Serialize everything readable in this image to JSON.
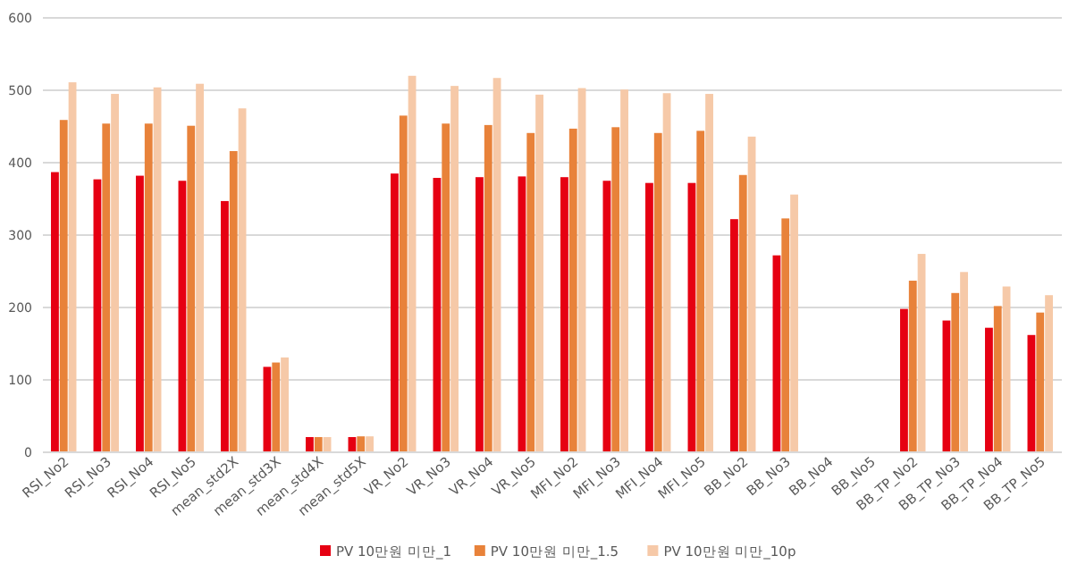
{
  "chart_data": {
    "type": "bar",
    "categories": [
      "RSI_No2",
      "RSI_No3",
      "RSI_No4",
      "RSI_No5",
      "mean_std2X",
      "mean_std3X",
      "mean_std4X",
      "mean_std5X",
      "VR_No2",
      "VR_No3",
      "VR_No4",
      "VR_No5",
      "MFI_No2",
      "MFI_No3",
      "MFI_No4",
      "MFI_No5",
      "BB_No2",
      "BB_No3",
      "BB_No4",
      "BB_No5",
      "BB_TP_No2",
      "BB_TP_No3",
      "BB_TP_No4",
      "BB_TP_No5"
    ],
    "series": [
      {
        "name": "PV 10만원 미만_1",
        "color": "#e60012",
        "values": [
          387,
          377,
          382,
          375,
          347,
          118,
          21,
          21,
          385,
          379,
          380,
          381,
          380,
          375,
          372,
          372,
          322,
          272,
          null,
          null,
          198,
          182,
          172,
          162
        ]
      },
      {
        "name": "PV 10만원 미만_1.5",
        "color": "#e8823a",
        "values": [
          459,
          454,
          454,
          451,
          416,
          124,
          21,
          22,
          465,
          454,
          452,
          441,
          447,
          449,
          441,
          444,
          383,
          323,
          null,
          null,
          237,
          220,
          202,
          193
        ]
      },
      {
        "name": "PV 10만원 미만_10p",
        "color": "#f6c9a8",
        "values": [
          511,
          495,
          504,
          509,
          475,
          131,
          21,
          22,
          520,
          506,
          517,
          494,
          503,
          501,
          496,
          495,
          436,
          356,
          null,
          null,
          274,
          249,
          229,
          217
        ]
      }
    ],
    "ylim": [
      0,
      600
    ],
    "yticks": [
      0,
      100,
      200,
      300,
      400,
      500,
      600
    ],
    "grid": "y",
    "legend": "bottom"
  }
}
